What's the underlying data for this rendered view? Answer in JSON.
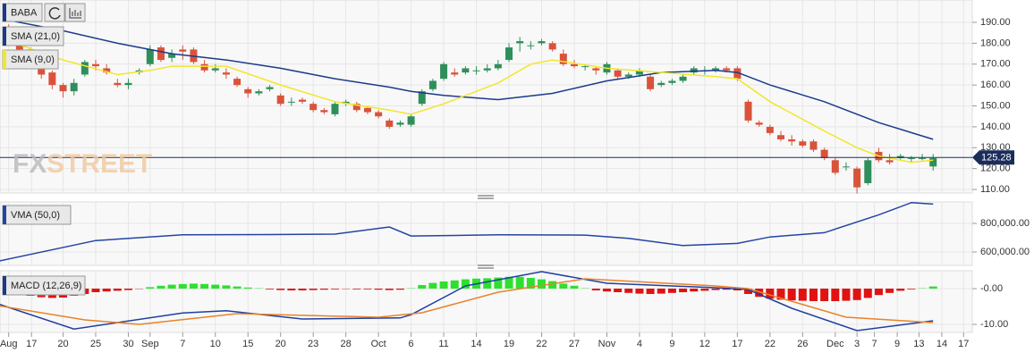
{
  "chart_data": [
    {
      "type": "candlestick",
      "title": "BABA",
      "watermark": [
        "FX",
        "STREET"
      ],
      "last_price": 125.28,
      "up_color": "#2f8f5b",
      "down_color": "#d9533b",
      "ylim": [
        108.3,
        200.7
      ],
      "yticks": [
        {
          "value": 110,
          "label": "110.00"
        },
        {
          "value": 120,
          "label": "120.00"
        },
        {
          "value": 130,
          "label": "130.00"
        },
        {
          "value": 140,
          "label": "140.00"
        },
        {
          "value": 150,
          "label": "150.00"
        },
        {
          "value": 160,
          "label": "160.00"
        },
        {
          "value": 170,
          "label": "170.00"
        },
        {
          "value": 180,
          "label": "180.00"
        },
        {
          "value": 190,
          "label": "190.00"
        }
      ],
      "candles": [
        [
          185,
          189,
          181,
          182
        ],
        [
          181,
          183,
          175,
          177
        ],
        [
          177,
          178,
          170,
          172
        ],
        [
          170,
          171,
          163,
          165
        ],
        [
          166,
          167,
          158,
          160
        ],
        [
          160,
          161,
          154,
          157
        ],
        [
          157,
          163,
          155,
          161
        ],
        [
          165,
          172,
          164,
          171
        ],
        [
          170,
          172,
          167,
          169
        ],
        [
          168,
          170,
          165,
          166
        ],
        [
          161,
          163,
          159,
          160
        ],
        [
          160,
          163,
          158,
          161
        ],
        [
          166,
          168,
          165,
          167
        ],
        [
          170,
          179,
          169,
          177
        ],
        [
          178,
          179,
          171,
          172
        ],
        [
          173,
          177,
          171,
          175
        ],
        [
          177,
          179,
          172,
          176
        ],
        [
          177,
          178,
          170,
          171
        ],
        [
          170,
          172,
          166,
          167
        ],
        [
          167,
          170,
          166,
          168
        ],
        [
          166,
          168,
          163,
          165
        ],
        [
          163,
          164,
          159,
          160
        ],
        [
          158,
          159,
          154,
          156
        ],
        [
          156,
          158,
          155,
          157
        ],
        [
          158,
          160,
          157,
          159
        ],
        [
          155,
          156,
          150,
          151
        ],
        [
          152,
          154,
          150,
          152
        ],
        [
          153,
          154,
          151,
          152
        ],
        [
          151,
          152,
          147,
          148
        ],
        [
          148,
          149,
          146,
          147
        ],
        [
          146,
          152,
          145,
          151
        ],
        [
          151,
          153,
          150,
          152
        ],
        [
          151,
          152,
          147,
          148
        ],
        [
          149,
          150,
          146,
          147
        ],
        [
          147,
          148,
          144,
          145
        ],
        [
          143,
          144,
          139,
          140
        ],
        [
          141,
          143,
          140,
          142
        ],
        [
          141,
          146,
          140,
          145
        ],
        [
          151,
          158,
          150,
          157
        ],
        [
          158,
          163,
          157,
          162
        ],
        [
          163,
          171,
          162,
          170
        ],
        [
          166,
          168,
          164,
          165
        ],
        [
          166,
          169,
          165,
          168
        ],
        [
          167,
          169,
          165,
          167
        ],
        [
          167,
          170,
          166,
          168
        ],
        [
          168,
          172,
          167,
          170
        ],
        [
          172,
          180,
          171,
          178
        ],
        [
          180,
          183,
          176,
          181
        ],
        [
          179,
          181,
          177,
          179
        ],
        [
          180,
          182,
          179,
          181
        ],
        [
          180,
          181,
          176,
          177
        ],
        [
          175,
          177,
          169,
          170
        ],
        [
          170,
          172,
          168,
          169
        ],
        [
          169,
          170,
          167,
          169
        ],
        [
          168,
          169,
          165,
          167
        ],
        [
          166,
          171,
          165,
          170
        ],
        [
          167,
          168,
          163,
          164
        ],
        [
          164,
          166,
          163,
          165
        ],
        [
          165,
          168,
          164,
          167
        ],
        [
          164,
          165,
          157,
          158
        ],
        [
          160,
          162,
          159,
          161
        ],
        [
          161,
          163,
          160,
          162
        ],
        [
          162,
          165,
          161,
          164
        ],
        [
          166,
          169,
          165,
          168
        ],
        [
          167,
          169,
          165,
          167
        ],
        [
          167,
          169,
          166,
          168
        ],
        [
          168,
          169,
          166,
          167
        ],
        [
          168,
          169,
          162,
          163
        ],
        [
          152,
          153,
          142,
          143
        ],
        [
          142,
          143,
          140,
          141
        ],
        [
          140,
          141,
          136,
          137
        ],
        [
          136,
          138,
          133,
          134
        ],
        [
          134,
          136,
          131,
          133
        ],
        [
          133,
          134,
          130,
          131
        ],
        [
          133,
          134,
          128,
          129
        ],
        [
          129,
          130,
          124,
          125
        ],
        [
          124,
          125,
          117,
          118
        ],
        [
          121,
          123,
          119,
          121
        ],
        [
          120,
          121,
          108,
          111
        ],
        [
          113,
          125,
          112,
          124
        ],
        [
          128,
          130,
          123,
          124
        ],
        [
          124,
          127,
          122,
          123
        ],
        [
          125,
          127,
          124,
          126
        ],
        [
          125,
          126,
          123,
          125
        ],
        [
          125,
          127,
          124,
          125
        ],
        [
          121,
          127,
          119,
          125
        ]
      ],
      "series": [
        {
          "name": "SMA (21,0)",
          "color": "#1b3a8a",
          "x": [
            0,
            5,
            10,
            15,
            20,
            25,
            30,
            35,
            37,
            40,
            45,
            50,
            55,
            60,
            65,
            67,
            70,
            75,
            80,
            85
          ],
          "values": [
            191,
            186,
            180,
            175,
            172,
            168,
            163,
            159,
            157,
            155,
            153,
            156,
            162,
            166,
            167,
            166,
            160,
            152,
            142,
            134
          ]
        },
        {
          "name": "SMA (9,0)",
          "color": "#f2e62b",
          "x": [
            0,
            5,
            10,
            13,
            15,
            20,
            25,
            30,
            35,
            37,
            40,
            45,
            48,
            50,
            55,
            60,
            65,
            67,
            70,
            75,
            78,
            80,
            83,
            85
          ],
          "values": [
            181,
            172,
            165,
            167,
            169,
            169,
            160,
            152,
            148,
            146,
            151,
            161,
            170,
            172,
            168,
            166,
            164,
            163,
            152,
            138,
            130,
            126,
            123,
            124
          ]
        }
      ]
    },
    {
      "type": "line",
      "ylim": [
        506250,
        950000
      ],
      "yticks": [
        {
          "value": 600000,
          "label": "600,000.00"
        },
        {
          "value": 800000,
          "label": "800,000.00"
        }
      ],
      "series": [
        {
          "name": "VMA (50,0)",
          "color": "#2444a3",
          "x": [
            -1,
            8,
            16,
            24,
            30,
            35,
            37,
            45,
            53,
            57,
            62,
            67,
            70,
            75,
            80,
            83,
            85
          ],
          "values": [
            535000,
            680000,
            720000,
            722000,
            725000,
            775000,
            712000,
            720000,
            718000,
            695000,
            645000,
            660000,
            705000,
            735000,
            860000,
            945000,
            935000
          ]
        }
      ]
    },
    {
      "type": "bar",
      "title": "MACD (12,26,9)",
      "up_color": "#2ee02e",
      "down_color": "#e01212",
      "ylim": [
        -12.25,
        5
      ],
      "yticks": [
        {
          "value": -10,
          "label": "-10.00"
        },
        {
          "value": 0,
          "label": "-0.00"
        }
      ],
      "xlim": [
        -0.8,
        88.6
      ],
      "xticks": [
        {
          "value": 0,
          "label": "Aug"
        },
        {
          "value": 2.1,
          "label": "17"
        },
        {
          "value": 5,
          "label": "20"
        },
        {
          "value": 8,
          "label": "25"
        },
        {
          "value": 11,
          "label": "30"
        },
        {
          "value": 13,
          "label": "Sep"
        },
        {
          "value": 16,
          "label": "7"
        },
        {
          "value": 19,
          "label": "10"
        },
        {
          "value": 22,
          "label": "15"
        },
        {
          "value": 25,
          "label": "20"
        },
        {
          "value": 28,
          "label": "23"
        },
        {
          "value": 31,
          "label": "28"
        },
        {
          "value": 34,
          "label": "Oct"
        },
        {
          "value": 37,
          "label": "6"
        },
        {
          "value": 40,
          "label": "11"
        },
        {
          "value": 43,
          "label": "14"
        },
        {
          "value": 46,
          "label": "19"
        },
        {
          "value": 49,
          "label": "22"
        },
        {
          "value": 52,
          "label": "27"
        },
        {
          "value": 55,
          "label": "Nov"
        },
        {
          "value": 58,
          "label": "4"
        },
        {
          "value": 61,
          "label": "9"
        },
        {
          "value": 64,
          "label": "12"
        },
        {
          "value": 67,
          "label": "17"
        },
        {
          "value": 70,
          "label": "22"
        },
        {
          "value": 73,
          "label": "26"
        },
        {
          "value": 76,
          "label": "Dec"
        },
        {
          "value": 78,
          "label": "3"
        },
        {
          "value": 79.6,
          "label": "7"
        },
        {
          "value": 81.7,
          "label": "9"
        },
        {
          "value": 83.7,
          "label": "13"
        },
        {
          "value": 85.8,
          "label": "14"
        },
        {
          "value": 87.8,
          "label": "17"
        }
      ],
      "values": [
        -1.5,
        -1.8,
        -2.0,
        -2.4,
        -2.6,
        -2.5,
        -2.0,
        -1.5,
        -1.0,
        -0.8,
        -0.6,
        -0.4,
        -0.1,
        0.4,
        0.8,
        1.1,
        1.3,
        1.4,
        1.3,
        1.1,
        0.9,
        0.6,
        0.3,
        0.1,
        -0.2,
        -0.4,
        -0.5,
        -0.5,
        -0.4,
        -0.3,
        -0.2,
        -0.1,
        -0.2,
        -0.2,
        -0.3,
        -0.4,
        -0.3,
        0.1,
        1.0,
        1.6,
        2.0,
        2.3,
        2.6,
        2.8,
        2.9,
        3.1,
        3.3,
        3.3,
        3.0,
        2.6,
        2.1,
        1.4,
        0.8,
        0.1,
        -0.5,
        -0.8,
        -1.0,
        -1.2,
        -1.4,
        -1.5,
        -1.4,
        -1.2,
        -1.0,
        -0.8,
        -0.6,
        -0.4,
        -0.3,
        -0.5,
        -1.5,
        -2.3,
        -2.8,
        -3.1,
        -3.3,
        -3.4,
        -3.5,
        -3.5,
        -3.5,
        -3.4,
        -3.2,
        -2.6,
        -1.8,
        -1.2,
        -0.6,
        -0.2,
        0.1,
        0.6
      ],
      "series": [
        {
          "color": "#1f3fa0",
          "x": [
            -1,
            6,
            16,
            20,
            27,
            36,
            37,
            42,
            49,
            55,
            65,
            68,
            72,
            78,
            85
          ],
          "values": [
            -4.25,
            -11.3,
            -6.8,
            -6.2,
            -8.5,
            -8.2,
            -7.3,
            0.75,
            4.75,
            1.5,
            0.25,
            -0.25,
            -5.5,
            -11.75,
            -9
          ]
        },
        {
          "color": "#e8822a",
          "x": [
            -1,
            7,
            12,
            21,
            34,
            38,
            45,
            53,
            65,
            68,
            77,
            85
          ],
          "values": [
            -4.75,
            -8.75,
            -10,
            -7,
            -8,
            -6.75,
            -1,
            2.75,
            0.75,
            0,
            -8,
            -9.5
          ]
        }
      ]
    }
  ]
}
